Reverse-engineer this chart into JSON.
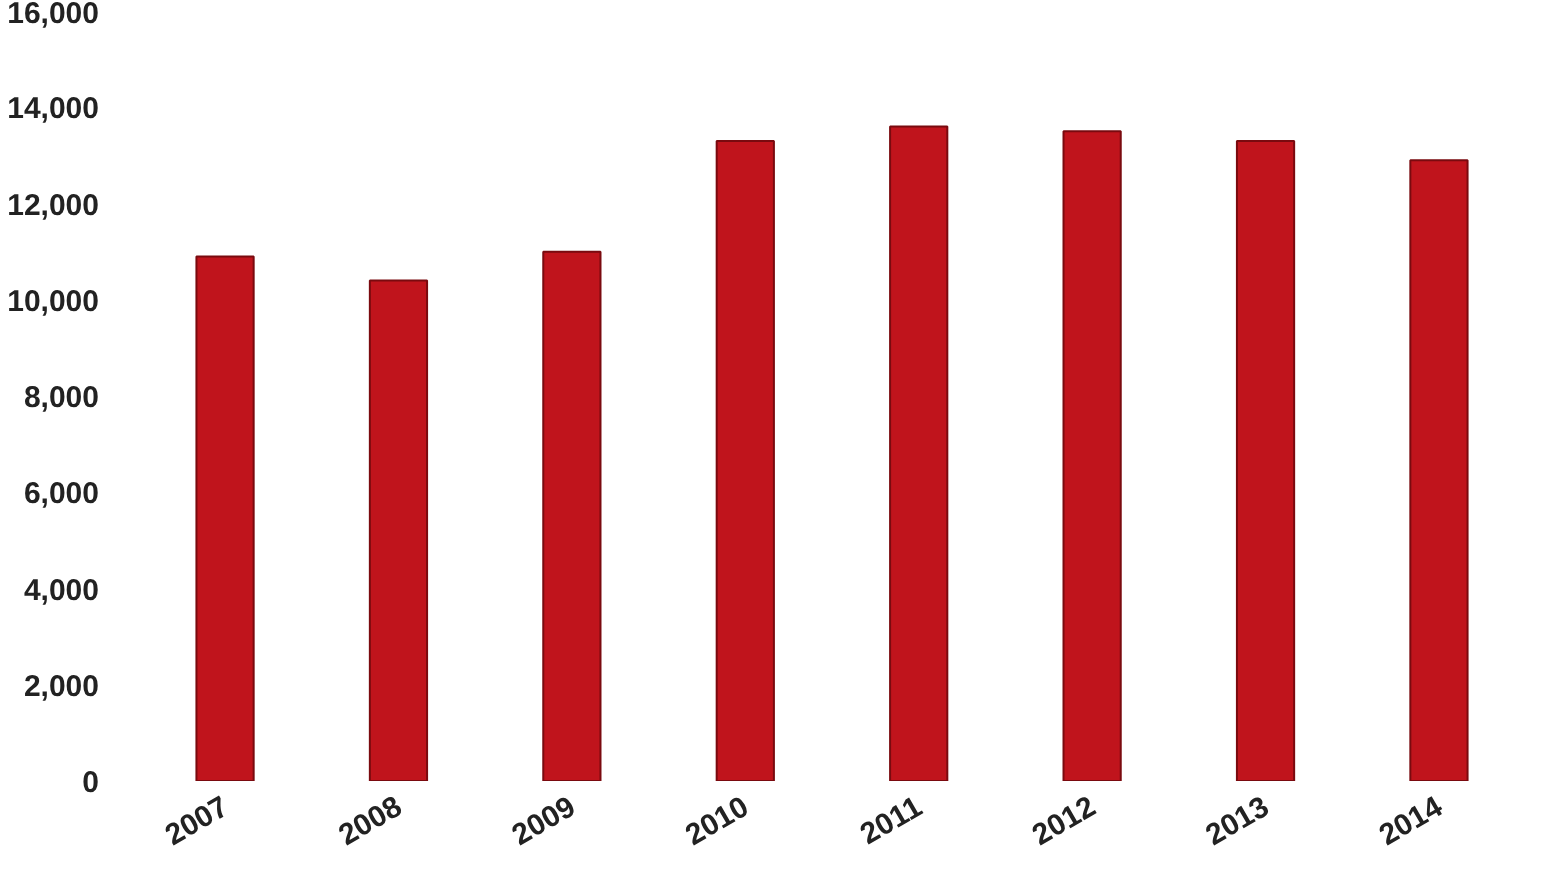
{
  "chart_data": {
    "type": "bar",
    "categories": [
      "2007",
      "2008",
      "2009",
      "2010",
      "2011",
      "2012",
      "2013",
      "2014"
    ],
    "values": [
      10900,
      10400,
      11000,
      13300,
      13600,
      13500,
      13300,
      12900
    ],
    "color": "#c0141c",
    "ylim": [
      0,
      16000
    ],
    "yticks": [
      {
        "value": 0,
        "label": "0"
      },
      {
        "value": 2000,
        "label": "2,000"
      },
      {
        "value": 4000,
        "label": "4,000"
      },
      {
        "value": 6000,
        "label": "6,000"
      },
      {
        "value": 8000,
        "label": "8,000"
      },
      {
        "value": 10000,
        "label": "10,000"
      },
      {
        "value": 12000,
        "label": "12,000"
      },
      {
        "value": 14000,
        "label": "14,000"
      },
      {
        "value": 16000,
        "label": "16,000"
      }
    ]
  }
}
